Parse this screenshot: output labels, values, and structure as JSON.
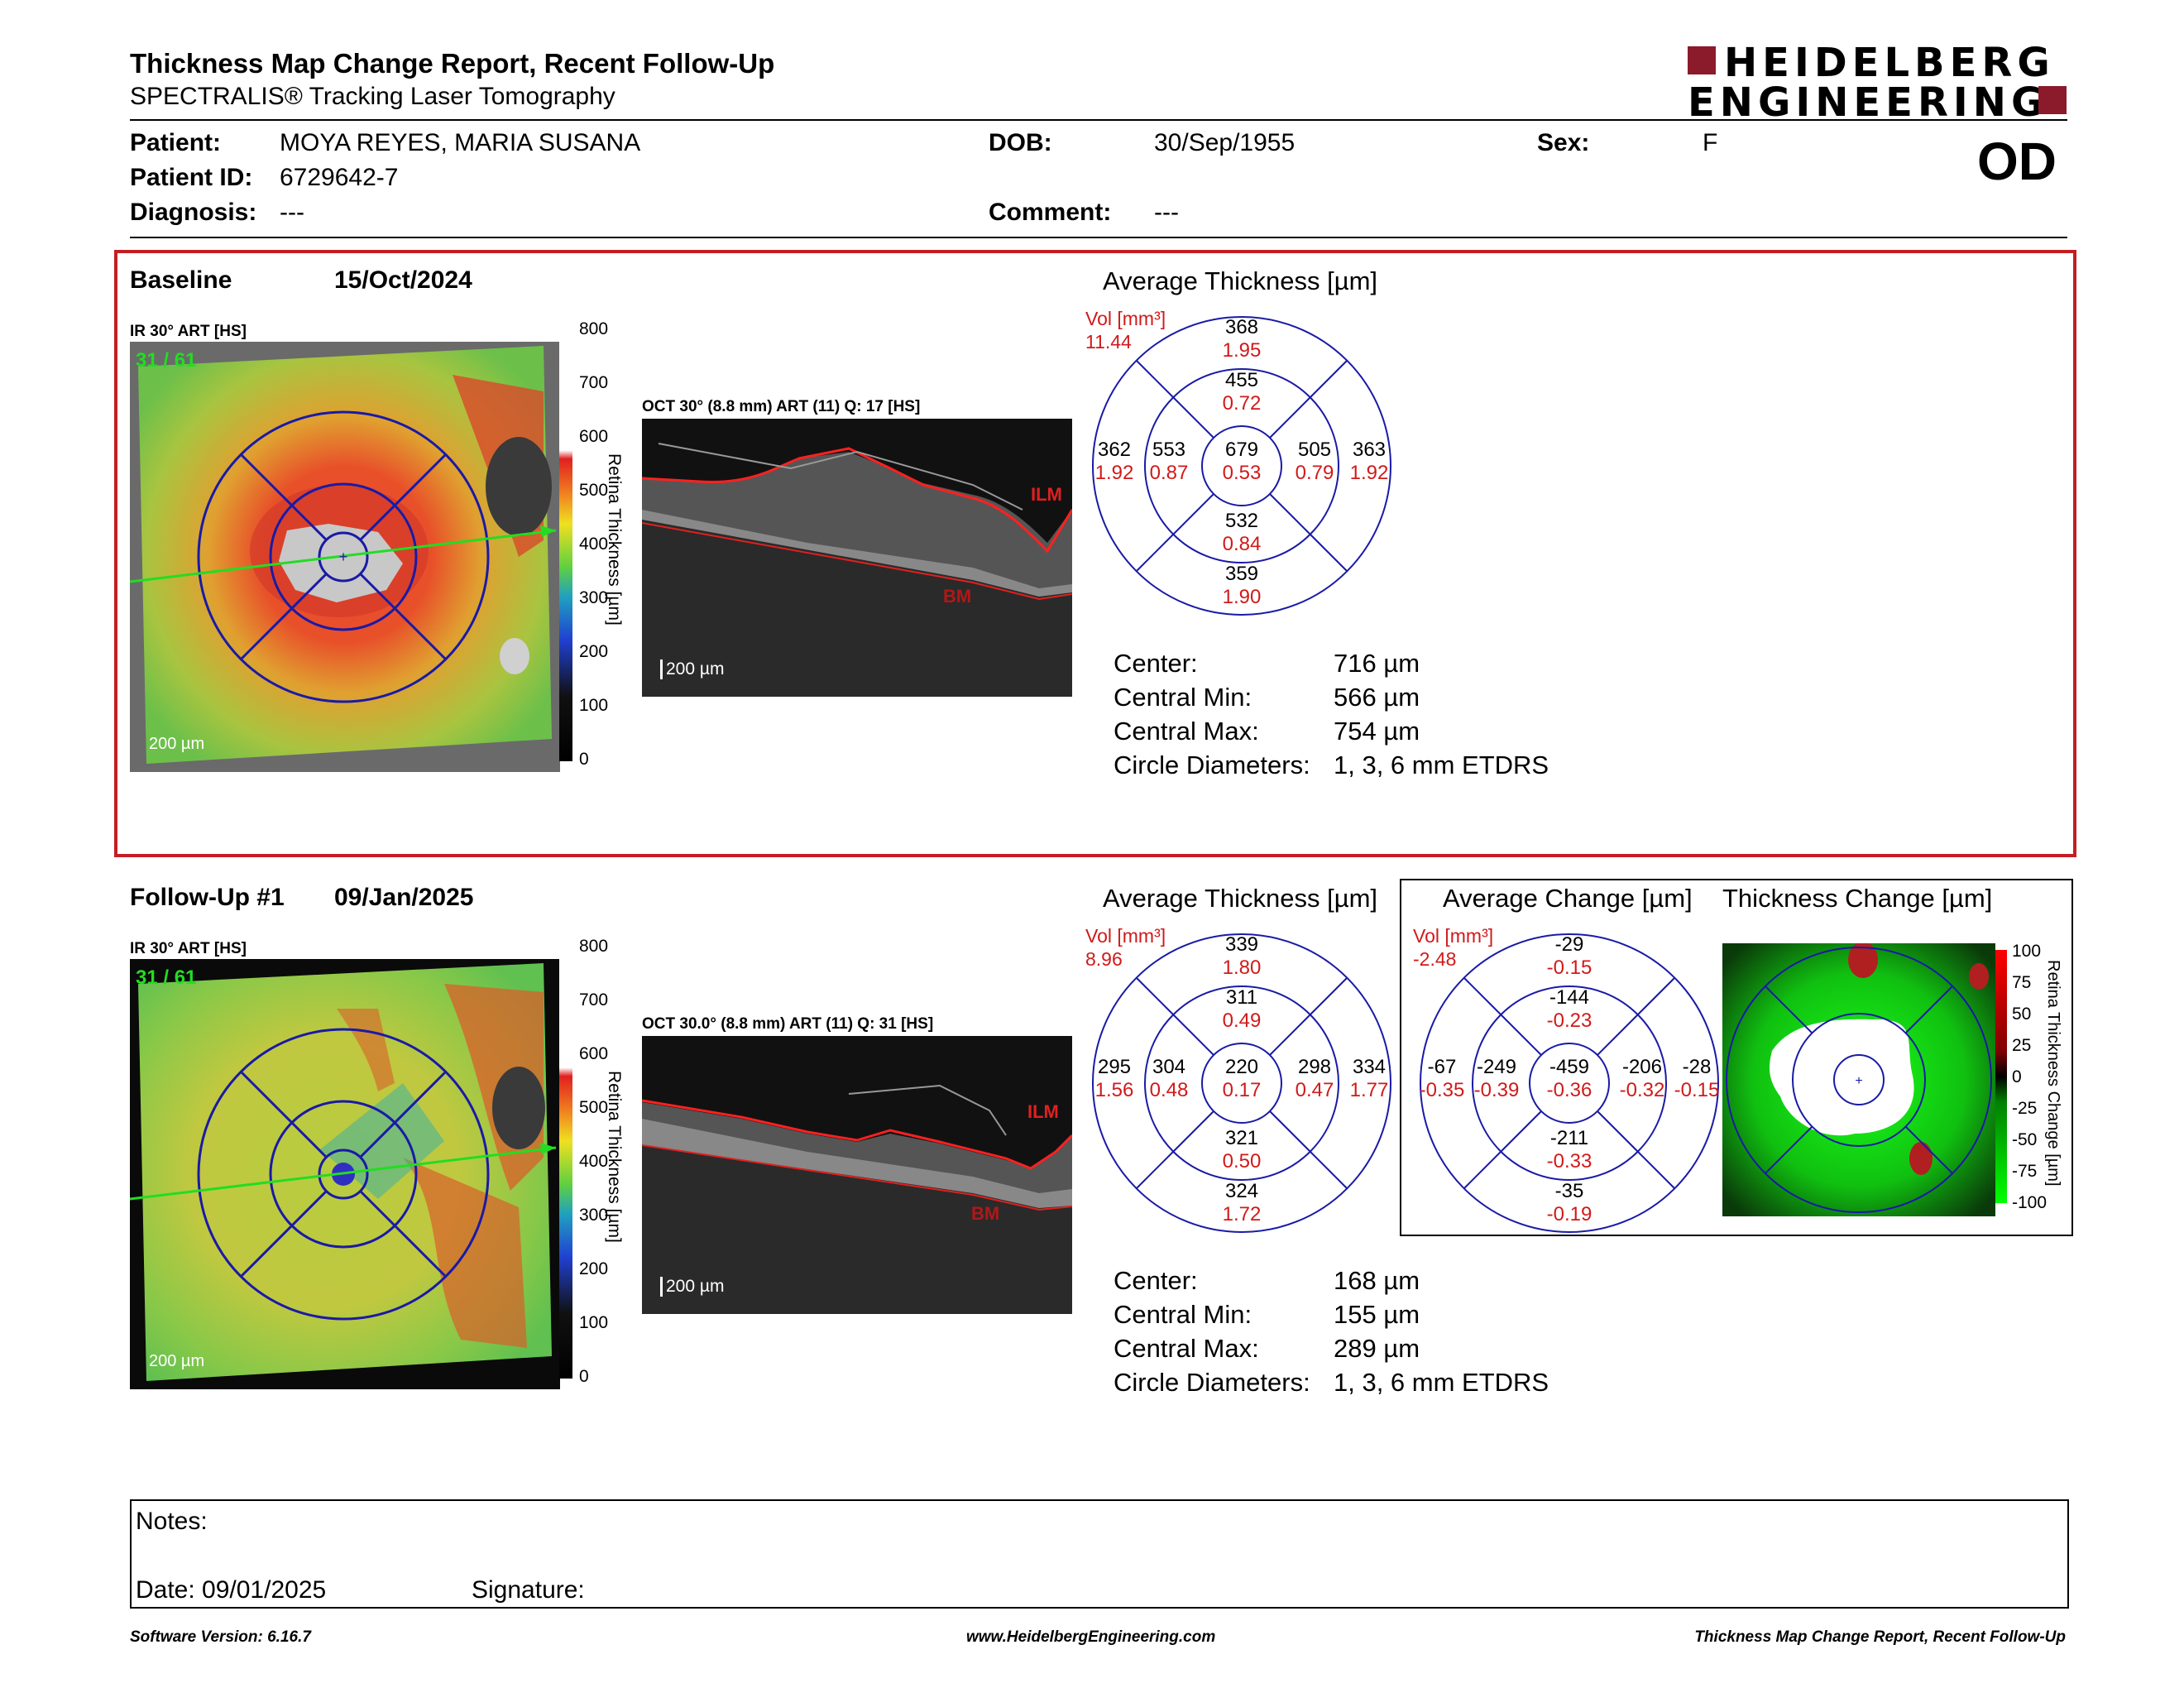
{
  "header": {
    "title": "Thickness Map Change Report, Recent Follow-Up",
    "subtitle": "SPECTRALIS® Tracking Laser Tomography",
    "logo_line1": "HEIDELBERG",
    "logo_line2": "ENGINEERING",
    "eye": "OD"
  },
  "patient": {
    "patient_label": "Patient:",
    "patient_value": "MOYA REYES, MARIA SUSANA",
    "dob_label": "DOB:",
    "dob_value": "30/Sep/1955",
    "sex_label": "Sex:",
    "sex_value": "F",
    "id_label": "Patient ID:",
    "id_value": "6729642-7",
    "diag_label": "Diagnosis:",
    "diag_value": "---",
    "comment_label": "Comment:",
    "comment_value": "---"
  },
  "baseline": {
    "label": "Baseline",
    "date": "15/Oct/2024",
    "ir_label": "IR 30° ART [HS]",
    "frame": "31 / 61",
    "scale": "200 µm",
    "oct_label": "OCT 30° (8.8 mm) ART (11) Q: 17 [HS]",
    "oct_scale": "200 µm",
    "colorbar": [
      "800",
      "700",
      "600",
      "500",
      "400",
      "300",
      "200",
      "100",
      "0"
    ],
    "colorbar_title": "Retina Thickness [µm]",
    "ilm": "ILM",
    "bm": "BM",
    "avg_title": "Average Thickness [µm]",
    "vol_label": "Vol [mm³]",
    "vol_value": "11.44",
    "grid": {
      "outer_sup": [
        "368",
        "1.95"
      ],
      "inner_sup": [
        "455",
        "0.72"
      ],
      "outer_nas": [
        "362",
        "1.92"
      ],
      "inner_nas": [
        "553",
        "0.87"
      ],
      "center": [
        "679",
        "0.53"
      ],
      "inner_tem": [
        "505",
        "0.79"
      ],
      "outer_tem": [
        "363",
        "1.92"
      ],
      "inner_inf": [
        "532",
        "0.84"
      ],
      "outer_inf": [
        "359",
        "1.90"
      ]
    },
    "stats": [
      {
        "k": "Center:",
        "v": "716 µm"
      },
      {
        "k": "Central Min:",
        "v": "566 µm"
      },
      {
        "k": "Central Max:",
        "v": "754 µm"
      },
      {
        "k": "Circle Diameters:",
        "v": "1, 3, 6 mm ETDRS"
      }
    ]
  },
  "followup": {
    "label": "Follow-Up #1",
    "date": "09/Jan/2025",
    "ir_label": "IR 30° ART [HS]",
    "frame": "31 / 61",
    "scale": "200 µm",
    "oct_label": "OCT 30.0° (8.8 mm) ART (11) Q: 31 [HS]",
    "oct_scale": "200 µm",
    "colorbar": [
      "800",
      "700",
      "600",
      "500",
      "400",
      "300",
      "200",
      "100",
      "0"
    ],
    "colorbar_title": "Retina Thickness [µm]",
    "ilm": "ILM",
    "bm": "BM",
    "avg_title": "Average Thickness [µm]",
    "vol_label": "Vol [mm³]",
    "vol_value": "8.96",
    "grid": {
      "outer_sup": [
        "339",
        "1.80"
      ],
      "inner_sup": [
        "311",
        "0.49"
      ],
      "outer_nas": [
        "295",
        "1.56"
      ],
      "inner_nas": [
        "304",
        "0.48"
      ],
      "center": [
        "220",
        "0.17"
      ],
      "inner_tem": [
        "298",
        "0.47"
      ],
      "outer_tem": [
        "334",
        "1.77"
      ],
      "inner_inf": [
        "321",
        "0.50"
      ],
      "outer_inf": [
        "324",
        "1.72"
      ]
    },
    "change_title": "Average Change [µm]",
    "change_vol_label": "Vol [mm³]",
    "change_vol_value": "-2.48",
    "change_grid": {
      "outer_sup": [
        "-29",
        "-0.15"
      ],
      "inner_sup": [
        "-144",
        "-0.23"
      ],
      "outer_nas": [
        "-67",
        "-0.35"
      ],
      "inner_nas": [
        "-249",
        "-0.39"
      ],
      "center": [
        "-459",
        "-0.36"
      ],
      "inner_tem": [
        "-206",
        "-0.32"
      ],
      "outer_tem": [
        "-28",
        "-0.15"
      ],
      "inner_inf": [
        "-211",
        "-0.33"
      ],
      "outer_inf": [
        "-35",
        "-0.19"
      ]
    },
    "thick_change_title": "Thickness Change [µm]",
    "change_bar": [
      "100",
      "75",
      "50",
      "25",
      "0",
      "-25",
      "-50",
      "-75",
      "-100"
    ],
    "change_bar_title": "Retina Thickness Change [µm]",
    "stats": [
      {
        "k": "Center:",
        "v": "168 µm"
      },
      {
        "k": "Central Min:",
        "v": "155 µm"
      },
      {
        "k": "Central Max:",
        "v": "289 µm"
      },
      {
        "k": "Circle Diameters:",
        "v": "1, 3, 6 mm ETDRS"
      }
    ]
  },
  "notes": {
    "notes_label": "Notes:",
    "date_label": "Date: 09/01/2025",
    "signature_label": "Signature:"
  },
  "footer": {
    "version": "Software Version: 6.16.7",
    "url": "www.HeidelbergEngineering.com",
    "report": "Thickness Map Change Report, Recent Follow-Up"
  },
  "colors": {
    "frame_red": "#c41e24",
    "value_red": "#d11a1a",
    "grid_blue": "#1a1aa6",
    "logo_red": "#8b1a2b"
  }
}
